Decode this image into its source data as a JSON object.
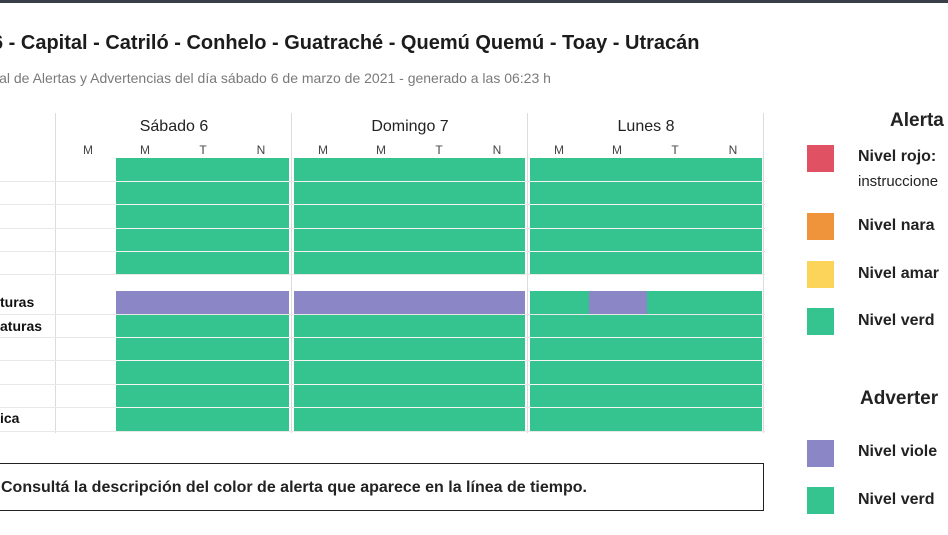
{
  "page": {
    "title": "6 - Capital - Catriló - Conhelo - Guatraché - Quemú Quemú - Toay - Utracán",
    "subtitle": "ial de Alertas y Advertencias del día sábado 6 de marzo de 2021 - generado a las 06:23 h"
  },
  "timeline": {
    "days": [
      {
        "label": "Sábado 6",
        "slots": [
          "M",
          "M",
          "T",
          "N"
        ]
      },
      {
        "label": "Domingo 7",
        "slots": [
          "M",
          "M",
          "T",
          "N"
        ]
      },
      {
        "label": "Lunes 8",
        "slots": [
          "M",
          "M",
          "T",
          "N"
        ]
      }
    ],
    "row_labels": [
      "",
      "",
      "",
      "",
      "",
      "turas",
      "aturas",
      "",
      "",
      "",
      "ica"
    ],
    "colors": {
      "green": "#35c48f",
      "violet": "#8b86c6"
    }
  },
  "note": {
    "text": "Consultá la descripción del color de alerta que aparece en la línea de tiempo."
  },
  "legend": {
    "alertas_title": "Alerta",
    "alertas": [
      {
        "label": "Nivel rojo:",
        "desc": "instruccione",
        "color": "#e05263"
      },
      {
        "label": "Nivel nara",
        "color": "#f0943c"
      },
      {
        "label": "Nivel amar",
        "color": "#fcd45a"
      },
      {
        "label": "Nivel verd",
        "color": "#35c48f"
      }
    ],
    "advertencias_title": "Adverter",
    "advertencias": [
      {
        "label": "Nivel viole",
        "color": "#8b86c6"
      },
      {
        "label": "Nivel verd",
        "color": "#35c48f"
      }
    ]
  }
}
